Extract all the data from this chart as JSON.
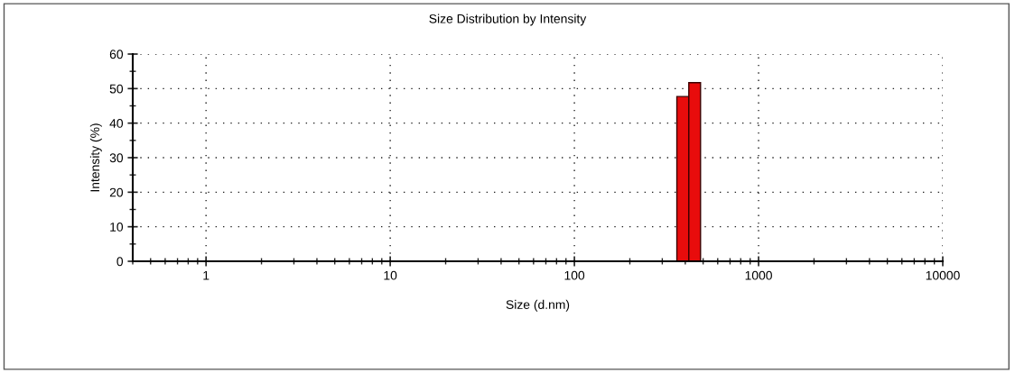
{
  "chart_data": {
    "type": "histogram",
    "title": "Size Distribution by Intensity",
    "xlabel": "Size (d.nm)",
    "ylabel": "Intensity (%)",
    "bins": [
      360,
      418,
      484
    ],
    "values": [
      47.7,
      51.7
    ],
    "color": "#e80c0c",
    "log": "x",
    "xlim": [
      0.4,
      10000
    ],
    "xticks": [
      1,
      10,
      100,
      1000,
      10000
    ],
    "ylim": [
      0,
      60
    ],
    "yticks": [
      0,
      10,
      20,
      30,
      40,
      50,
      60
    ],
    "grid": true
  }
}
